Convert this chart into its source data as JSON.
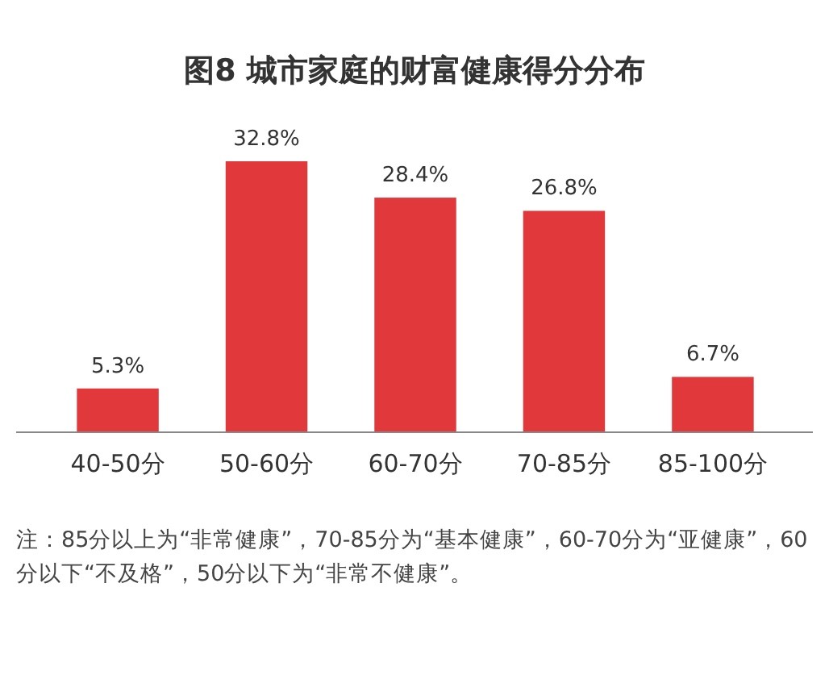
{
  "chart_data": {
    "type": "bar",
    "title": "图8 城市家庭的财富健康得分分布",
    "categories": [
      "40-50分",
      "50-60分",
      "60-70分",
      "70-85分",
      "85-100分"
    ],
    "values": [
      5.3,
      32.8,
      28.4,
      26.8,
      6.7
    ],
    "value_labels": [
      "5.3%",
      "32.8%",
      "28.4%",
      "26.8%",
      "6.7%"
    ],
    "color": "#e0383b",
    "annotations": [
      "注：85分以上为“非常健康”，70-85分为“基本健康”，60-70分为“亚健康”，60分以下“不及格”，50分以下为“非常不健康”。"
    ]
  }
}
